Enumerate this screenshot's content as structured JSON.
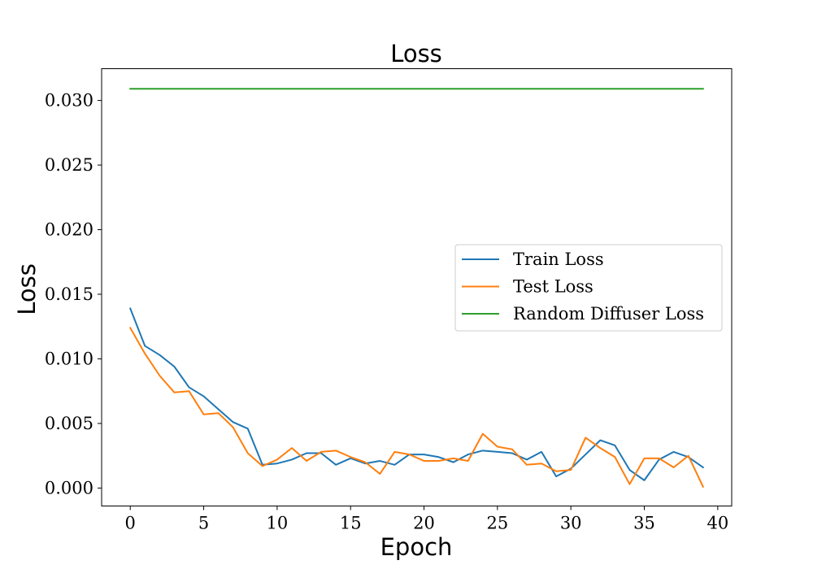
{
  "chart_data": {
    "type": "line",
    "title": "Loss",
    "xlabel": "Epoch",
    "ylabel": "Loss",
    "xlim": [
      -1.95,
      40.95
    ],
    "ylim": [
      -0.00139,
      0.03246
    ],
    "xticks": [
      0,
      5,
      10,
      15,
      20,
      25,
      30,
      35,
      40
    ],
    "xtick_labels": [
      "0",
      "5",
      "10",
      "15",
      "20",
      "25",
      "30",
      "35",
      "40"
    ],
    "yticks": [
      0.0,
      0.005,
      0.01,
      0.015,
      0.02,
      0.025,
      0.03
    ],
    "ytick_labels": [
      "0.000",
      "0.005",
      "0.010",
      "0.015",
      "0.020",
      "0.025",
      "0.030"
    ],
    "grid": false,
    "legend_position": "center-right",
    "x": [
      0,
      1,
      2,
      3,
      4,
      5,
      6,
      7,
      8,
      9,
      10,
      11,
      12,
      13,
      14,
      15,
      16,
      17,
      18,
      19,
      20,
      21,
      22,
      23,
      24,
      25,
      26,
      27,
      28,
      29,
      30,
      31,
      32,
      33,
      34,
      35,
      36,
      37,
      38,
      39
    ],
    "series": [
      {
        "name": "Train Loss",
        "color": "#1f77b4",
        "values": [
          0.0139,
          0.011,
          0.0103,
          0.0094,
          0.0078,
          0.0071,
          0.0061,
          0.0051,
          0.0046,
          0.0018,
          0.0019,
          0.0022,
          0.0027,
          0.0027,
          0.0018,
          0.0023,
          0.0019,
          0.0021,
          0.0018,
          0.0026,
          0.0026,
          0.0024,
          0.002,
          0.0026,
          0.0029,
          0.0028,
          0.0027,
          0.0022,
          0.0028,
          0.0009,
          0.0015,
          0.0026,
          0.0037,
          0.0033,
          0.0014,
          0.0006,
          0.0022,
          0.0028,
          0.0024,
          0.0016
        ]
      },
      {
        "name": "Test Loss",
        "color": "#ff7f0e",
        "values": [
          0.0124,
          0.0104,
          0.0087,
          0.0074,
          0.0075,
          0.0057,
          0.0058,
          0.0047,
          0.0027,
          0.0017,
          0.0022,
          0.0031,
          0.0021,
          0.0028,
          0.0029,
          0.0024,
          0.002,
          0.0011,
          0.0028,
          0.0026,
          0.0021,
          0.0021,
          0.0023,
          0.0021,
          0.0042,
          0.0032,
          0.003,
          0.0018,
          0.0019,
          0.0013,
          0.0014,
          0.0039,
          0.0031,
          0.0024,
          0.0003,
          0.0023,
          0.0023,
          0.0016,
          0.0025,
          0.0001
        ]
      },
      {
        "name": "Random Diffuser Loss",
        "color": "#2ca02c",
        "values": [
          0.0309,
          0.0309,
          0.0309,
          0.0309,
          0.0309,
          0.0309,
          0.0309,
          0.0309,
          0.0309,
          0.0309,
          0.0309,
          0.0309,
          0.0309,
          0.0309,
          0.0309,
          0.0309,
          0.0309,
          0.0309,
          0.0309,
          0.0309,
          0.0309,
          0.0309,
          0.0309,
          0.0309,
          0.0309,
          0.0309,
          0.0309,
          0.0309,
          0.0309,
          0.0309,
          0.0309,
          0.0309,
          0.0309,
          0.0309,
          0.0309,
          0.0309,
          0.0309,
          0.0309,
          0.0309,
          0.0309
        ]
      }
    ]
  }
}
